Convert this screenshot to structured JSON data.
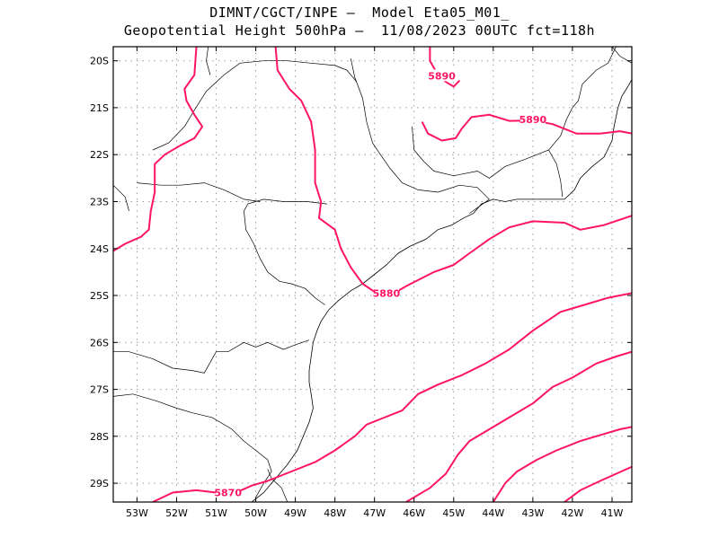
{
  "header": {
    "line1": "DIMNT/CGCT/INPE –  Model Eta05_M01_",
    "line2": "Geopotential Height 500hPa –  11/08/2023 00UTC fct=118h"
  },
  "colors": {
    "contour": "#ff1464",
    "border": "#000000",
    "grid": "#999999"
  },
  "map": {
    "lon_range": [
      -53.6,
      -40.5
    ],
    "lat_range": [
      -29.4,
      -19.7
    ],
    "lon_ticks": [
      {
        "v": -53,
        "label": "53W"
      },
      {
        "v": -52,
        "label": "52W"
      },
      {
        "v": -51,
        "label": "51W"
      },
      {
        "v": -50,
        "label": "50W"
      },
      {
        "v": -49,
        "label": "49W"
      },
      {
        "v": -48,
        "label": "48W"
      },
      {
        "v": -47,
        "label": "47W"
      },
      {
        "v": -46,
        "label": "46W"
      },
      {
        "v": -45,
        "label": "45W"
      },
      {
        "v": -44,
        "label": "44W"
      },
      {
        "v": -43,
        "label": "43W"
      },
      {
        "v": -42,
        "label": "42W"
      },
      {
        "v": -41,
        "label": "41W"
      }
    ],
    "lat_ticks": [
      {
        "v": -20,
        "label": "20S"
      },
      {
        "v": -21,
        "label": "21S"
      },
      {
        "v": -22,
        "label": "22S"
      },
      {
        "v": -23,
        "label": "23S"
      },
      {
        "v": -24,
        "label": "24S"
      },
      {
        "v": -25,
        "label": "25S"
      },
      {
        "v": -26,
        "label": "26S"
      },
      {
        "v": -27,
        "label": "27S"
      },
      {
        "v": -28,
        "label": "28S"
      },
      {
        "v": -29,
        "label": "29S"
      }
    ],
    "contour_labels": [
      {
        "text": "5890",
        "lon": -45.3,
        "lat": -20.32
      },
      {
        "text": "5890",
        "lon": -43.0,
        "lat": -21.25
      },
      {
        "text": "5880",
        "lon": -46.7,
        "lat": -24.95
      },
      {
        "text": "5870",
        "lon": -50.7,
        "lat": -29.2
      }
    ],
    "contours": [
      [
        [
          -53.6,
          -24.05
        ],
        [
          -53.3,
          -23.9
        ],
        [
          -52.9,
          -23.75
        ],
        [
          -52.7,
          -23.6
        ],
        [
          -52.65,
          -23.2
        ],
        [
          -52.55,
          -22.8
        ],
        [
          -52.55,
          -22.2
        ],
        [
          -52.3,
          -22.0
        ],
        [
          -51.9,
          -21.8
        ],
        [
          -51.55,
          -21.65
        ],
        [
          -51.35,
          -21.4
        ],
        [
          -51.55,
          -21.15
        ],
        [
          -51.75,
          -20.85
        ],
        [
          -51.8,
          -20.6
        ],
        [
          -51.55,
          -20.3
        ],
        [
          -51.5,
          -19.7
        ]
      ],
      [
        [
          -49.5,
          -19.7
        ],
        [
          -49.45,
          -20.2
        ],
        [
          -49.15,
          -20.6
        ],
        [
          -48.85,
          -20.85
        ],
        [
          -48.6,
          -21.3
        ],
        [
          -48.5,
          -21.9
        ],
        [
          -48.5,
          -22.6
        ],
        [
          -48.35,
          -23.0
        ],
        [
          -48.4,
          -23.35
        ],
        [
          -48.0,
          -23.6
        ],
        [
          -47.85,
          -24.0
        ],
        [
          -47.6,
          -24.4
        ],
        [
          -47.3,
          -24.75
        ],
        [
          -46.95,
          -24.95
        ],
        [
          -46.6,
          -25.0
        ],
        [
          -46.2,
          -24.8
        ],
        [
          -45.5,
          -24.5
        ],
        [
          -45.0,
          -24.35
        ],
        [
          -44.6,
          -24.1
        ],
        [
          -44.1,
          -23.8
        ],
        [
          -43.6,
          -23.55
        ],
        [
          -43.0,
          -23.42
        ],
        [
          -42.2,
          -23.45
        ],
        [
          -41.8,
          -23.6
        ],
        [
          -41.2,
          -23.5
        ],
        [
          -40.5,
          -23.3
        ]
      ],
      [
        [
          -45.6,
          -19.7
        ],
        [
          -45.6,
          -20.0
        ],
        [
          -45.4,
          -20.3
        ],
        [
          -45.2,
          -20.45
        ],
        [
          -45.0,
          -20.55
        ],
        [
          -44.85,
          -20.42
        ]
      ],
      [
        [
          -45.8,
          -21.3
        ],
        [
          -45.65,
          -21.55
        ],
        [
          -45.3,
          -21.7
        ],
        [
          -44.95,
          -21.65
        ],
        [
          -44.8,
          -21.45
        ],
        [
          -44.55,
          -21.2
        ],
        [
          -44.1,
          -21.15
        ],
        [
          -43.6,
          -21.28
        ],
        [
          -43.0,
          -21.27
        ],
        [
          -42.5,
          -21.35
        ],
        [
          -41.9,
          -21.55
        ],
        [
          -41.3,
          -21.55
        ],
        [
          -40.8,
          -21.5
        ],
        [
          -40.5,
          -21.55
        ]
      ],
      [
        [
          -52.6,
          -29.4
        ],
        [
          -52.1,
          -29.2
        ],
        [
          -51.5,
          -29.15
        ],
        [
          -51.0,
          -29.2
        ],
        [
          -50.5,
          -29.2
        ],
        [
          -50.1,
          -29.05
        ],
        [
          -49.7,
          -28.95
        ],
        [
          -49.1,
          -28.75
        ],
        [
          -48.5,
          -28.55
        ],
        [
          -48.0,
          -28.3
        ],
        [
          -47.5,
          -28.0
        ],
        [
          -47.2,
          -27.75
        ],
        [
          -46.9,
          -27.65
        ],
        [
          -46.3,
          -27.45
        ],
        [
          -45.9,
          -27.1
        ],
        [
          -45.4,
          -26.9
        ],
        [
          -44.8,
          -26.7
        ],
        [
          -44.2,
          -26.45
        ],
        [
          -43.6,
          -26.15
        ],
        [
          -43.0,
          -25.75
        ],
        [
          -42.3,
          -25.35
        ],
        [
          -41.7,
          -25.2
        ],
        [
          -41.1,
          -25.05
        ],
        [
          -40.5,
          -24.95
        ]
      ],
      [
        [
          -46.2,
          -29.4
        ],
        [
          -45.6,
          -29.1
        ],
        [
          -45.2,
          -28.8
        ],
        [
          -44.9,
          -28.4
        ],
        [
          -44.6,
          -28.1
        ],
        [
          -44.1,
          -27.85
        ],
        [
          -43.6,
          -27.6
        ],
        [
          -43.0,
          -27.3
        ],
        [
          -42.5,
          -26.95
        ],
        [
          -42.0,
          -26.75
        ],
        [
          -41.4,
          -26.45
        ],
        [
          -40.9,
          -26.3
        ],
        [
          -40.5,
          -26.2
        ]
      ],
      [
        [
          -44.0,
          -29.4
        ],
        [
          -43.7,
          -29.0
        ],
        [
          -43.4,
          -28.75
        ],
        [
          -42.9,
          -28.5
        ],
        [
          -42.4,
          -28.3
        ],
        [
          -41.8,
          -28.1
        ],
        [
          -41.2,
          -27.95
        ],
        [
          -40.8,
          -27.85
        ],
        [
          -40.5,
          -27.8
        ]
      ],
      [
        [
          -42.2,
          -29.4
        ],
        [
          -41.8,
          -29.15
        ],
        [
          -41.3,
          -28.95
        ],
        [
          -40.9,
          -28.8
        ],
        [
          -40.5,
          -28.65
        ]
      ]
    ],
    "borders": [
      [
        [
          -53.6,
          -26.2
        ],
        [
          -53.2,
          -26.2
        ],
        [
          -52.6,
          -26.35
        ],
        [
          -52.1,
          -26.55
        ],
        [
          -51.6,
          -26.6
        ],
        [
          -51.3,
          -26.65
        ],
        [
          -51.0,
          -26.2
        ],
        [
          -50.7,
          -26.2
        ],
        [
          -50.3,
          -26.0
        ],
        [
          -50.0,
          -26.1
        ],
        [
          -49.7,
          -26.0
        ],
        [
          -49.3,
          -26.15
        ],
        [
          -49.0,
          -26.05
        ],
        [
          -48.65,
          -25.95
        ]
      ],
      [
        [
          -53.6,
          -27.15
        ],
        [
          -53.1,
          -27.1
        ],
        [
          -52.5,
          -27.25
        ],
        [
          -52.0,
          -27.4
        ],
        [
          -51.6,
          -27.5
        ],
        [
          -51.1,
          -27.6
        ],
        [
          -50.6,
          -27.85
        ],
        [
          -50.3,
          -28.1
        ],
        [
          -50.0,
          -28.3
        ],
        [
          -49.7,
          -28.5
        ],
        [
          -49.6,
          -28.75
        ],
        [
          -49.8,
          -29.0
        ],
        [
          -50.0,
          -29.3
        ]
      ],
      [
        [
          -48.2,
          -23.05
        ],
        [
          -48.7,
          -23.0
        ],
        [
          -49.3,
          -23.0
        ],
        [
          -49.8,
          -22.95
        ],
        [
          -50.2,
          -23.05
        ],
        [
          -50.3,
          -23.2
        ],
        [
          -50.25,
          -23.6
        ],
        [
          -50.05,
          -23.9
        ],
        [
          -49.9,
          -24.2
        ],
        [
          -49.7,
          -24.5
        ],
        [
          -49.4,
          -24.7
        ],
        [
          -49.1,
          -24.75
        ],
        [
          -48.75,
          -24.85
        ],
        [
          -48.5,
          -25.05
        ],
        [
          -48.25,
          -25.2
        ]
      ],
      [
        [
          -53.0,
          -22.6
        ],
        [
          -52.4,
          -22.65
        ],
        [
          -51.9,
          -22.65
        ],
        [
          -51.3,
          -22.6
        ],
        [
          -50.8,
          -22.75
        ],
        [
          -50.3,
          -22.95
        ],
        [
          -49.9,
          -23.0
        ]
      ],
      [
        [
          -52.6,
          -21.9
        ],
        [
          -52.2,
          -21.75
        ],
        [
          -51.8,
          -21.4
        ],
        [
          -51.55,
          -21.05
        ],
        [
          -51.25,
          -20.65
        ],
        [
          -50.8,
          -20.3
        ],
        [
          -50.4,
          -20.05
        ],
        [
          -49.8,
          -20.0
        ],
        [
          -49.2,
          -20.0
        ],
        [
          -48.6,
          -20.05
        ],
        [
          -48.0,
          -20.1
        ],
        [
          -47.7,
          -20.2
        ],
        [
          -47.45,
          -20.45
        ]
      ],
      [
        [
          -53.6,
          -22.65
        ],
        [
          -53.3,
          -22.9
        ],
        [
          -53.2,
          -23.2
        ]
      ],
      [
        [
          -51.2,
          -19.7
        ],
        [
          -51.25,
          -20.0
        ],
        [
          -51.15,
          -20.3
        ]
      ],
      [
        [
          -47.6,
          -19.95
        ],
        [
          -47.5,
          -20.35
        ],
        [
          -47.3,
          -20.8
        ],
        [
          -47.2,
          -21.3
        ],
        [
          -47.05,
          -21.75
        ],
        [
          -46.85,
          -22.0
        ],
        [
          -46.6,
          -22.3
        ],
        [
          -46.3,
          -22.6
        ],
        [
          -45.9,
          -22.75
        ],
        [
          -45.4,
          -22.8
        ],
        [
          -44.85,
          -22.65
        ],
        [
          -44.4,
          -22.7
        ],
        [
          -44.1,
          -22.95
        ],
        [
          -44.6,
          -23.25
        ]
      ],
      [
        [
          -46.05,
          -21.4
        ],
        [
          -46.0,
          -21.9
        ],
        [
          -45.75,
          -22.15
        ],
        [
          -45.5,
          -22.35
        ],
        [
          -45.0,
          -22.45
        ],
        [
          -44.4,
          -22.35
        ],
        [
          -44.1,
          -22.5
        ],
        [
          -43.7,
          -22.25
        ],
        [
          -43.2,
          -22.1
        ],
        [
          -42.6,
          -21.9
        ],
        [
          -42.3,
          -21.6
        ],
        [
          -42.15,
          -21.25
        ],
        [
          -42.0,
          -21.0
        ],
        [
          -41.85,
          -20.85
        ],
        [
          -41.75,
          -20.5
        ],
        [
          -41.4,
          -20.2
        ],
        [
          -41.1,
          -20.05
        ],
        [
          -40.9,
          -19.7
        ]
      ],
      [
        [
          -42.6,
          -21.9
        ],
        [
          -42.4,
          -22.2
        ],
        [
          -42.3,
          -22.55
        ],
        [
          -42.25,
          -22.9
        ]
      ],
      [
        [
          -40.5,
          -20.05
        ],
        [
          -40.8,
          -19.9
        ],
        [
          -41.0,
          -19.7
        ]
      ],
      [
        [
          -49.2,
          -29.4
        ],
        [
          -49.35,
          -29.1
        ],
        [
          -49.6,
          -28.9
        ],
        [
          -49.7,
          -28.7
        ]
      ]
    ],
    "coast": [
      [
        [
          -50.1,
          -29.4
        ],
        [
          -49.8,
          -29.2
        ],
        [
          -49.5,
          -28.9
        ],
        [
          -49.2,
          -28.6
        ],
        [
          -48.95,
          -28.3
        ],
        [
          -48.8,
          -28.0
        ],
        [
          -48.65,
          -27.7
        ],
        [
          -48.55,
          -27.4
        ],
        [
          -48.6,
          -27.1
        ],
        [
          -48.65,
          -26.85
        ],
        [
          -48.65,
          -26.6
        ],
        [
          -48.6,
          -26.3
        ],
        [
          -48.55,
          -26.0
        ],
        [
          -48.45,
          -25.75
        ],
        [
          -48.35,
          -25.55
        ],
        [
          -48.15,
          -25.3
        ],
        [
          -47.9,
          -25.1
        ],
        [
          -47.6,
          -24.9
        ],
        [
          -47.3,
          -24.75
        ],
        [
          -47.0,
          -24.55
        ],
        [
          -46.7,
          -24.35
        ],
        [
          -46.4,
          -24.1
        ],
        [
          -46.1,
          -23.95
        ],
        [
          -45.7,
          -23.8
        ],
        [
          -45.4,
          -23.6
        ],
        [
          -45.05,
          -23.5
        ],
        [
          -44.75,
          -23.35
        ],
        [
          -44.5,
          -23.25
        ],
        [
          -44.3,
          -23.05
        ],
        [
          -44.0,
          -22.95
        ],
        [
          -43.7,
          -23.0
        ],
        [
          -43.4,
          -22.95
        ],
        [
          -43.1,
          -22.95
        ],
        [
          -42.7,
          -22.95
        ],
        [
          -42.2,
          -22.95
        ],
        [
          -41.95,
          -22.75
        ],
        [
          -41.8,
          -22.5
        ],
        [
          -41.5,
          -22.25
        ],
        [
          -41.2,
          -22.05
        ],
        [
          -41.0,
          -21.7
        ],
        [
          -40.95,
          -21.4
        ],
        [
          -40.85,
          -21.0
        ],
        [
          -40.75,
          -20.75
        ],
        [
          -40.6,
          -20.55
        ],
        [
          -40.5,
          -20.4
        ]
      ]
    ]
  }
}
